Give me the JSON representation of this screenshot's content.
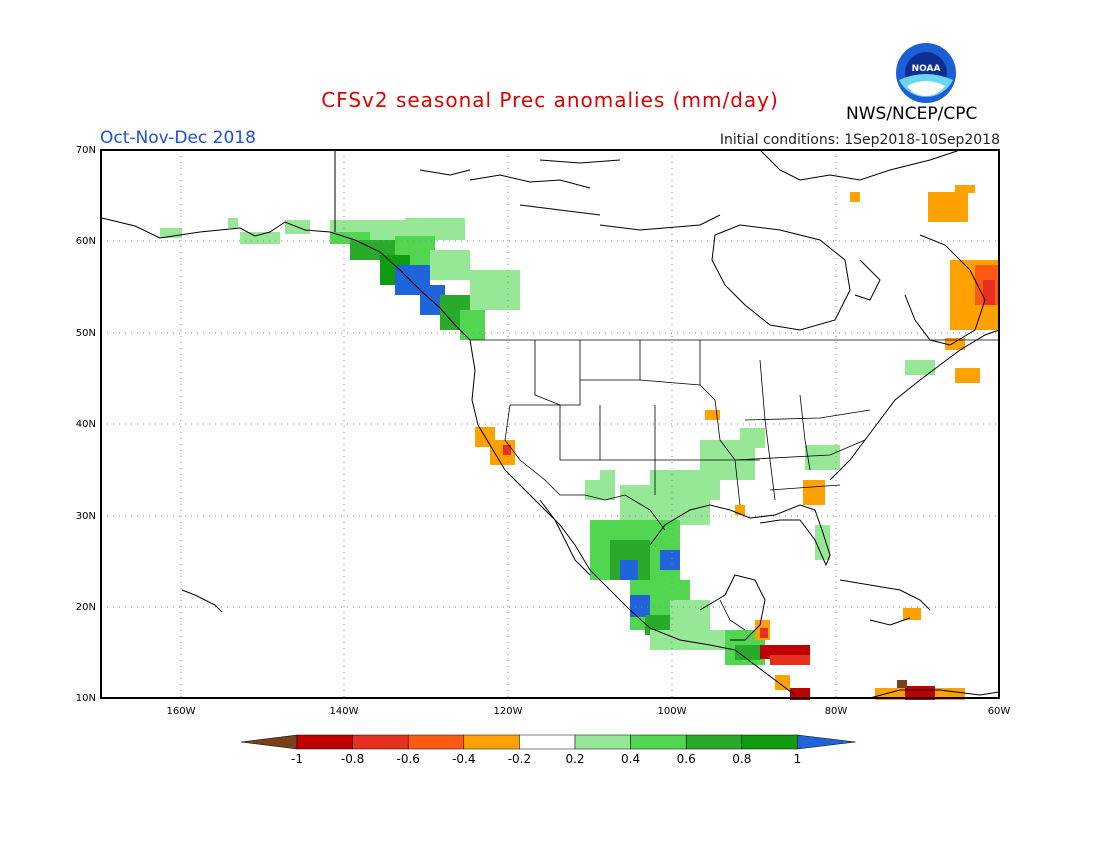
{
  "title": "CFSv2 seasonal Prec anomalies (mm/day)",
  "season": "Oct-Nov-Dec 2018",
  "initial_conditions": "Initial conditions: 1Sep2018-10Sep2018",
  "agency": "NWS/NCEP/CPC",
  "logo_text": "NOAA",
  "lat_labels": [
    "70N",
    "60N",
    "50N",
    "40N",
    "30N",
    "20N",
    "10N"
  ],
  "lon_labels": [
    "160W",
    "140W",
    "120W",
    "100W",
    "80W",
    "60W"
  ],
  "colorbar": {
    "labels": [
      "-1",
      "-0.8",
      "-0.6",
      "-0.4",
      "-0.2",
      "0.2",
      "0.4",
      "0.6",
      "0.8",
      "1"
    ],
    "colors": [
      "#7a3f1d",
      "#c00000",
      "#e83020",
      "#ff5a14",
      "#ffa200",
      "#ffffff",
      "#96e896",
      "#52d652",
      "#2aaa2a",
      "#109c10",
      "#1f64d8"
    ]
  },
  "extent": {
    "lon": [
      -172,
      -60
    ],
    "lat": [
      10,
      70
    ]
  }
}
